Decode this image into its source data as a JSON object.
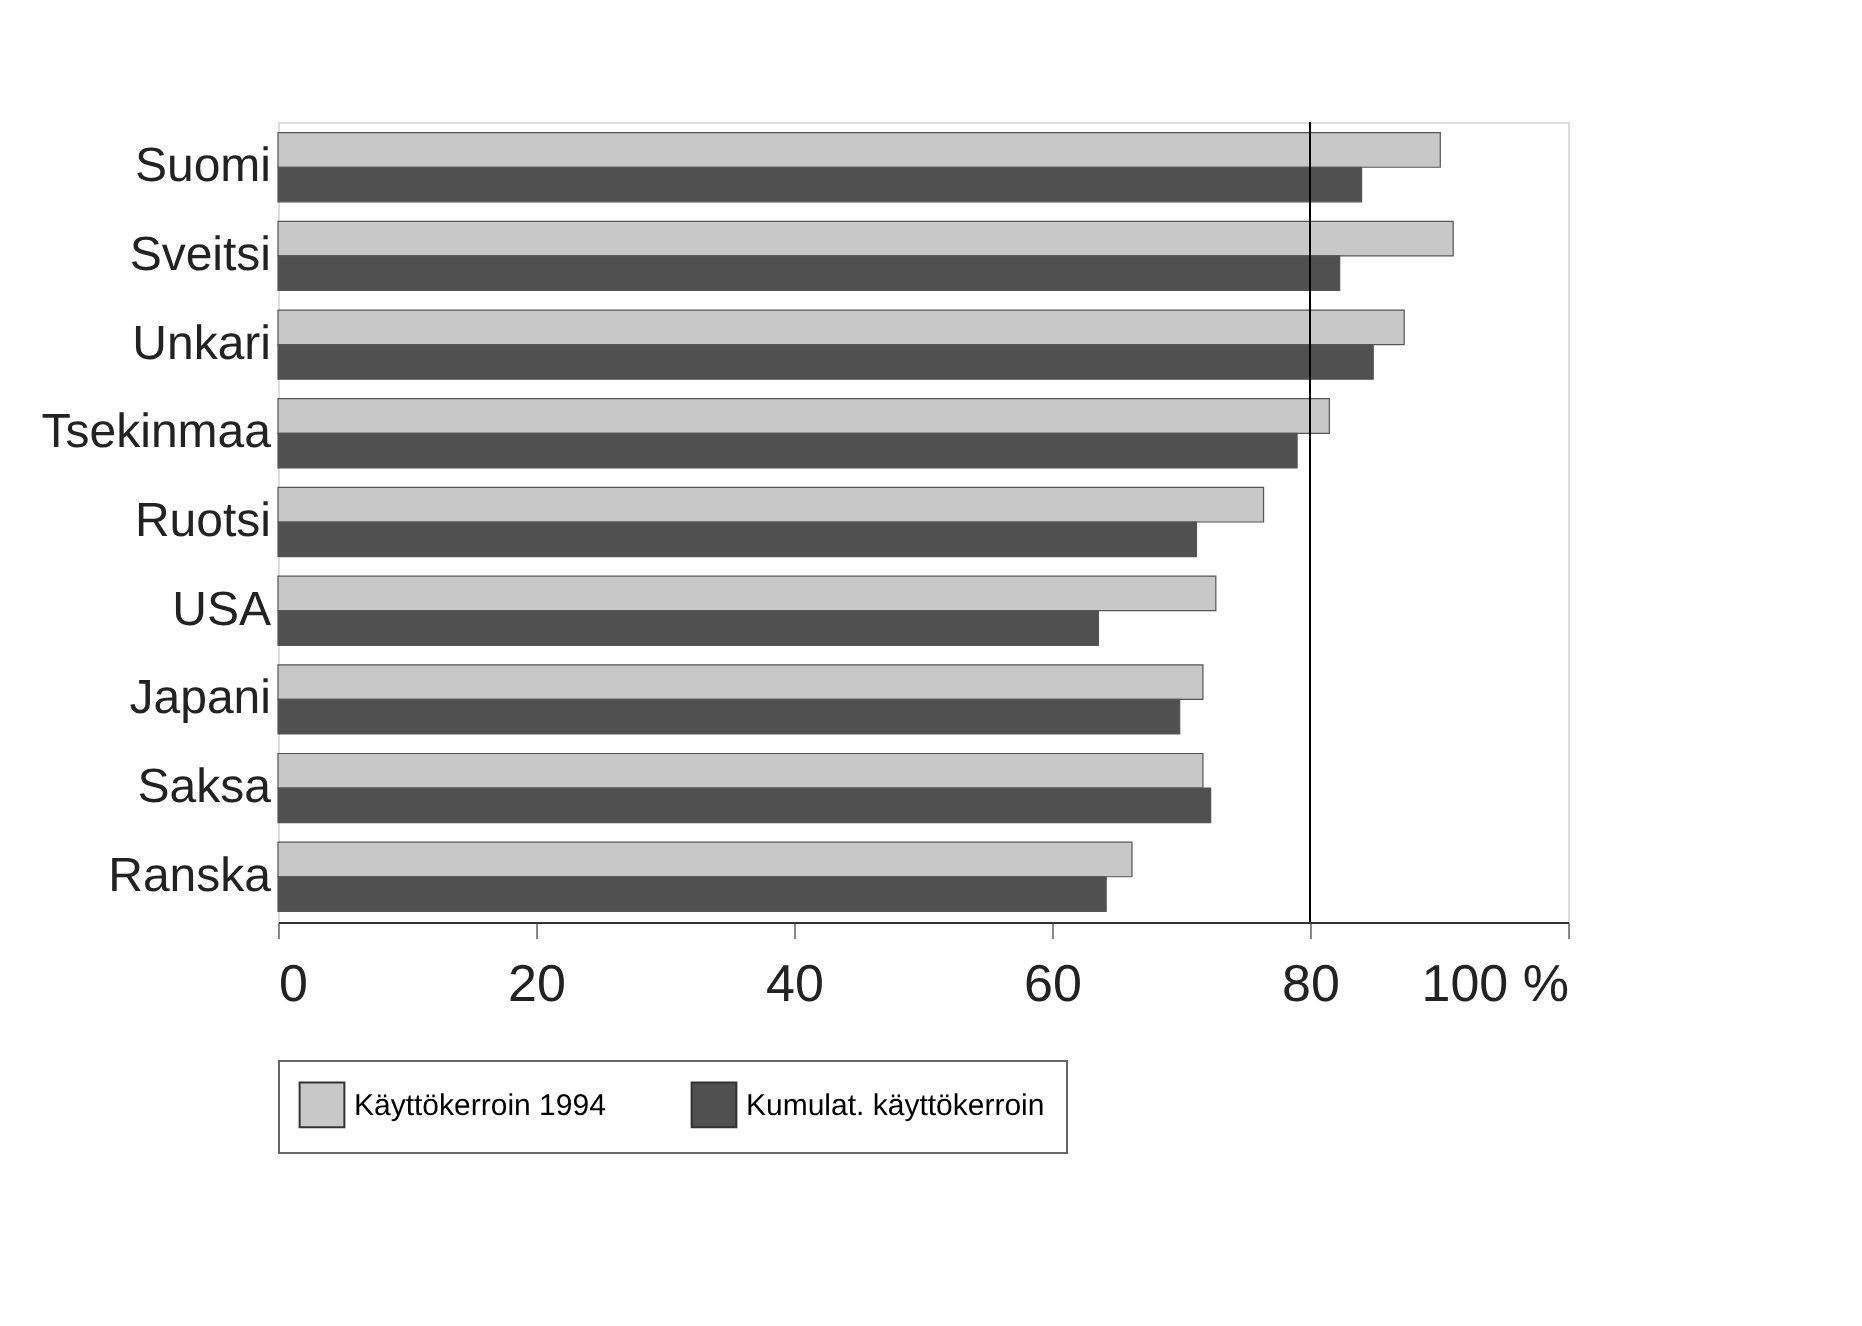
{
  "chart_data": {
    "type": "bar",
    "orientation": "horizontal",
    "categories": [
      "Suomi",
      "Sveitsi",
      "Unkari",
      "Tsekinmaa",
      "Ruotsi",
      "USA",
      "Japani",
      "Saksa",
      "Ranska"
    ],
    "series": [
      {
        "name": "Käyttökerroin 1994",
        "color": "#c8c8c8",
        "values": [
          90.1,
          91.1,
          87.3,
          81.5,
          76.4,
          72.7,
          71.7,
          71.7,
          66.2
        ]
      },
      {
        "name": "Kumulat. käyttökerroin",
        "color": "#505050",
        "values": [
          84.0,
          82.3,
          84.9,
          79.0,
          71.2,
          63.6,
          69.9,
          72.3,
          64.2
        ]
      }
    ],
    "xlim": [
      0,
      100
    ],
    "xticks": [
      0,
      20,
      40,
      60,
      80,
      {
        "value": 100,
        "label": "100 %"
      }
    ],
    "ref_lines": [
      {
        "axis": "x",
        "value": 80,
        "color": "#000000"
      }
    ],
    "grid": false,
    "legend": "bottom"
  }
}
